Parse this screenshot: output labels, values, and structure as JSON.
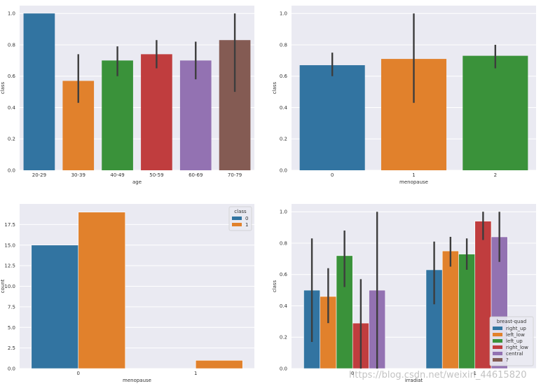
{
  "colors": {
    "background": "#eaeaf2",
    "grid": "#ffffff",
    "errbar": "#3d3d3d",
    "palette": [
      "#3274a1",
      "#e1812c",
      "#3a923a",
      "#c03d3e",
      "#9372b2",
      "#845b53"
    ]
  },
  "watermark": "https://blog.csdn.net/weixin_44615820",
  "chart_data": [
    {
      "type": "bar",
      "xlabel": "age",
      "ylabel": "class",
      "ylim": [
        0,
        1.05
      ],
      "yticks": [
        "0.0",
        "0.2",
        "0.4",
        "0.6",
        "0.8",
        "1.0"
      ],
      "categories": [
        "20-29",
        "30-39",
        "40-49",
        "50-59",
        "60-69",
        "70-79"
      ],
      "values": [
        1.0,
        0.57,
        0.7,
        0.74,
        0.7,
        0.83
      ],
      "errors": [
        [
          1.0,
          1.0
        ],
        [
          0.43,
          0.74
        ],
        [
          0.6,
          0.79
        ],
        [
          0.65,
          0.83
        ],
        [
          0.58,
          0.82
        ],
        [
          0.5,
          1.0
        ]
      ],
      "grid": true
    },
    {
      "type": "bar",
      "xlabel": "menopause",
      "ylabel": "class",
      "ylim": [
        0,
        1.05
      ],
      "yticks": [
        "0.0",
        "0.2",
        "0.4",
        "0.6",
        "0.8",
        "1.0"
      ],
      "categories": [
        "0",
        "1",
        "2"
      ],
      "values": [
        0.67,
        0.71,
        0.73
      ],
      "errors": [
        [
          0.6,
          0.75
        ],
        [
          0.43,
          1.0
        ],
        [
          0.65,
          0.8
        ]
      ],
      "grid": true
    },
    {
      "type": "bar",
      "xlabel": "menopause",
      "ylabel": "count",
      "ylim": [
        0,
        20
      ],
      "yticks": [
        "0.0",
        "2.5",
        "5.0",
        "7.5",
        "10.0",
        "12.5",
        "15.0",
        "17.5"
      ],
      "categories": [
        "0",
        "1"
      ],
      "legend_title": "class",
      "legend_position": "top-right",
      "series": [
        {
          "name": "0",
          "values": [
            15,
            0
          ]
        },
        {
          "name": "1",
          "values": [
            19,
            1
          ]
        }
      ],
      "grid": true
    },
    {
      "type": "bar",
      "xlabel": "irradiat",
      "ylabel": "class",
      "ylim": [
        0,
        1.05
      ],
      "yticks": [
        "0.0",
        "0.2",
        "0.4",
        "0.6",
        "0.8",
        "1.0"
      ],
      "categories": [
        "0",
        "1"
      ],
      "legend_title": "breast-quad",
      "legend_position": "bottom-right",
      "series": [
        {
          "name": "right_up",
          "values": [
            0.5,
            0.63
          ],
          "errors": [
            [
              0.17,
              0.83
            ],
            [
              0.41,
              0.81
            ]
          ]
        },
        {
          "name": "left_low",
          "values": [
            0.46,
            0.75
          ],
          "errors": [
            [
              0.29,
              0.64
            ],
            [
              0.65,
              0.84
            ]
          ]
        },
        {
          "name": "left_up",
          "values": [
            0.72,
            0.73
          ],
          "errors": [
            [
              0.52,
              0.88
            ],
            [
              0.63,
              0.83
            ]
          ]
        },
        {
          "name": "right_low",
          "values": [
            0.29,
            0.94
          ],
          "errors": [
            [
              0.0,
              0.57
            ],
            [
              0.82,
              1.0
            ]
          ]
        },
        {
          "name": "central",
          "values": [
            0.5,
            0.84
          ],
          "errors": [
            [
              0.0,
              1.0
            ],
            [
              0.68,
              1.0
            ]
          ]
        },
        {
          "name": "?",
          "values": [
            null,
            null
          ],
          "errors": [
            null,
            null
          ]
        }
      ],
      "grid": true
    }
  ]
}
